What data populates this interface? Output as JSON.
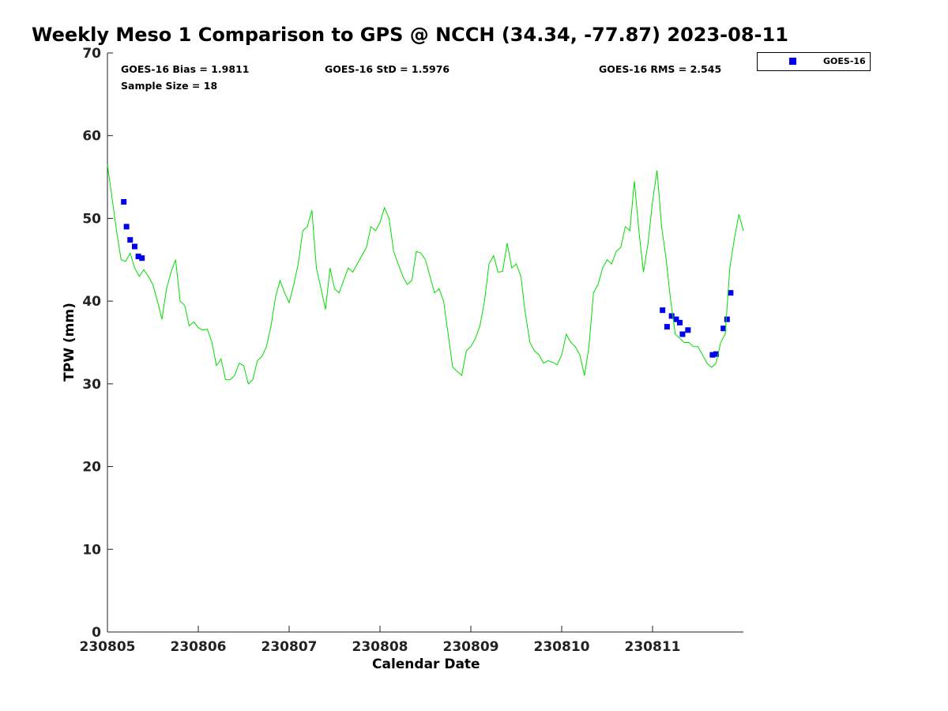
{
  "chart_data": {
    "type": "scatter",
    "title": "Weekly Meso 1 Comparison to GPS @ NCCH (34.34, -77.87) 2023-08-11",
    "xlabel": "Calendar Date",
    "ylabel": "TPW (mm)",
    "xlim": [
      0,
      7
    ],
    "ylim": [
      0,
      70
    ],
    "x_ticks": [
      0,
      1,
      2,
      3,
      4,
      5,
      6
    ],
    "x_tick_labels": [
      "230805",
      "230806",
      "230807",
      "230808",
      "230809",
      "230810",
      "230811"
    ],
    "y_ticks": [
      0,
      10,
      20,
      30,
      40,
      50,
      60,
      70
    ],
    "y_tick_labels": [
      "0",
      "10",
      "20",
      "30",
      "40",
      "50",
      "60",
      "70"
    ],
    "grid": false,
    "legend_position": "outside top-right",
    "stats": {
      "bias": "GOES-16 Bias = 1.9811",
      "std": "GOES-16 StD = 1.5976",
      "rms": "GOES-16 RMS = 2.545",
      "sample": "Sample Size = 18"
    },
    "series": [
      {
        "name": "GOES-16",
        "kind": "scatter",
        "color": "#0000ee",
        "x": [
          0.18,
          0.21,
          0.25,
          0.3,
          0.34,
          0.38,
          6.11,
          6.16,
          6.21,
          6.26,
          6.3,
          6.33,
          6.39,
          6.66,
          6.7,
          6.78,
          6.82,
          6.86
        ],
        "y": [
          52.0,
          49.0,
          47.4,
          46.6,
          45.4,
          45.2,
          38.9,
          36.9,
          38.2,
          37.8,
          37.4,
          36.0,
          36.5,
          33.5,
          33.6,
          36.7,
          37.8,
          41.0
        ]
      },
      {
        "kind": "line",
        "color": "#00dd00",
        "x": [
          0.0,
          0.05,
          0.1,
          0.15,
          0.2,
          0.25,
          0.3,
          0.35,
          0.4,
          0.45,
          0.5,
          0.55,
          0.6,
          0.65,
          0.7,
          0.75,
          0.8,
          0.85,
          0.9,
          0.95,
          1.0,
          1.05,
          1.1,
          1.15,
          1.2,
          1.25,
          1.3,
          1.35,
          1.4,
          1.45,
          1.5,
          1.55,
          1.6,
          1.65,
          1.7,
          1.75,
          1.8,
          1.85,
          1.9,
          1.95,
          2.0,
          2.05,
          2.1,
          2.15,
          2.2,
          2.25,
          2.3,
          2.35,
          2.4,
          2.45,
          2.5,
          2.55,
          2.6,
          2.65,
          2.7,
          2.75,
          2.8,
          2.85,
          2.9,
          2.95,
          3.0,
          3.05,
          3.1,
          3.15,
          3.2,
          3.25,
          3.3,
          3.35,
          3.4,
          3.45,
          3.5,
          3.55,
          3.6,
          3.65,
          3.7,
          3.75,
          3.8,
          3.85,
          3.9,
          3.95,
          4.0,
          4.05,
          4.1,
          4.15,
          4.2,
          4.25,
          4.3,
          4.35,
          4.4,
          4.45,
          4.5,
          4.55,
          4.6,
          4.65,
          4.7,
          4.75,
          4.8,
          4.85,
          4.9,
          4.95,
          5.0,
          5.05,
          5.1,
          5.15,
          5.2,
          5.25,
          5.3,
          5.35,
          5.4,
          5.45,
          5.5,
          5.55,
          5.6,
          5.65,
          5.7,
          5.75,
          5.8,
          5.85,
          5.9,
          5.95,
          6.0,
          6.05,
          6.1,
          6.15,
          6.2,
          6.25,
          6.3,
          6.35,
          6.4,
          6.45,
          6.5,
          6.55,
          6.6,
          6.65,
          6.7,
          6.75,
          6.8,
          6.85,
          6.9,
          6.95,
          7.0
        ],
        "y": [
          56.5,
          52.5,
          48.5,
          45.0,
          44.8,
          45.8,
          44.0,
          43.0,
          43.8,
          43.0,
          42.0,
          40.0,
          37.8,
          41.5,
          43.5,
          45.0,
          40.0,
          39.5,
          37.0,
          37.5,
          36.8,
          36.5,
          36.6,
          35.0,
          32.2,
          33.0,
          30.5,
          30.5,
          31.0,
          32.5,
          32.2,
          30.0,
          30.5,
          32.8,
          33.3,
          34.5,
          37.0,
          40.5,
          42.5,
          41.0,
          39.8,
          42.0,
          44.5,
          48.5,
          49.0,
          51.0,
          44.0,
          41.5,
          39.0,
          44.0,
          41.5,
          41.0,
          42.5,
          44.0,
          43.5,
          44.5,
          45.5,
          46.5,
          49.0,
          48.5,
          49.5,
          51.3,
          50.0,
          46.0,
          44.5,
          43.0,
          42.0,
          42.5,
          46.0,
          45.8,
          45.0,
          43.0,
          41.0,
          41.5,
          40.0,
          36.0,
          32.0,
          31.5,
          31.0,
          34.0,
          34.5,
          35.5,
          37.0,
          40.0,
          44.5,
          45.5,
          43.5,
          43.6,
          47.0,
          44.0,
          44.5,
          43.0,
          38.5,
          35.0,
          34.0,
          33.5,
          32.5,
          32.8,
          32.6,
          32.3,
          33.5,
          36.0,
          35.0,
          34.5,
          33.5,
          31.0,
          34.5,
          41.0,
          42.0,
          44.0,
          45.0,
          44.5,
          46.0,
          46.5,
          49.0,
          48.5,
          54.5,
          48.5,
          43.5,
          47.0,
          52.0,
          55.8,
          49.0,
          45.0,
          40.0,
          36.0,
          35.5,
          35.0,
          35.0,
          34.5,
          34.5,
          33.5,
          32.5,
          32.0,
          32.5,
          35.0,
          36.0,
          44.0,
          47.5,
          50.5,
          48.5
        ]
      }
    ]
  }
}
